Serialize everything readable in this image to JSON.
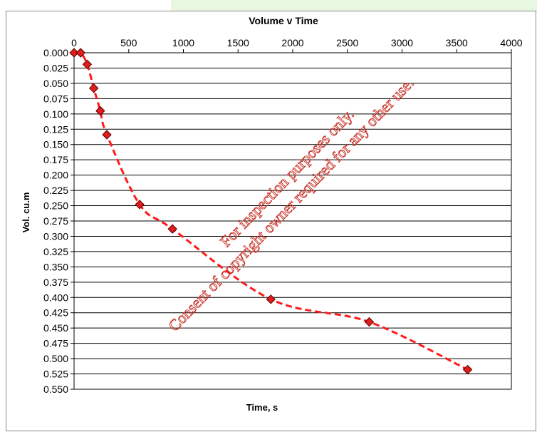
{
  "chart_data": {
    "type": "scatter",
    "title": "Volume v Time",
    "xlabel": "Time, s",
    "ylabel": "Vol. cu.m",
    "xlim": [
      0,
      4000
    ],
    "ylim": [
      0,
      0.55
    ],
    "y_inverted": true,
    "x_axis_position": "top",
    "grid": "horizontal",
    "legend": "none",
    "x_ticks": [
      "0",
      "500",
      "1000",
      "1500",
      "2000",
      "2500",
      "3000",
      "3500",
      "4000"
    ],
    "y_ticks": [
      "0.000",
      "0.025",
      "0.050",
      "0.075",
      "0.100",
      "0.125",
      "0.150",
      "0.175",
      "0.200",
      "0.225",
      "0.250",
      "0.275",
      "0.300",
      "0.325",
      "0.350",
      "0.375",
      "0.400",
      "0.425",
      "0.450",
      "0.475",
      "0.500",
      "0.525",
      "0.550"
    ],
    "series": [
      {
        "x": [
          0,
          60,
          120,
          180,
          240,
          300,
          600,
          900,
          1800,
          2700,
          3600
        ],
        "y": [
          0.0,
          0.0,
          0.019,
          0.058,
          0.095,
          0.134,
          0.248,
          0.288,
          0.403,
          0.44,
          0.518
        ],
        "marker": "diamond",
        "marker_color": "#e01e1e",
        "line": "dashed smooth",
        "line_color": "#ff1a1a"
      }
    ]
  },
  "watermark": {
    "line1": "For inspection purposes only.",
    "line2": "Consent of copyright owner required for any other use."
  }
}
